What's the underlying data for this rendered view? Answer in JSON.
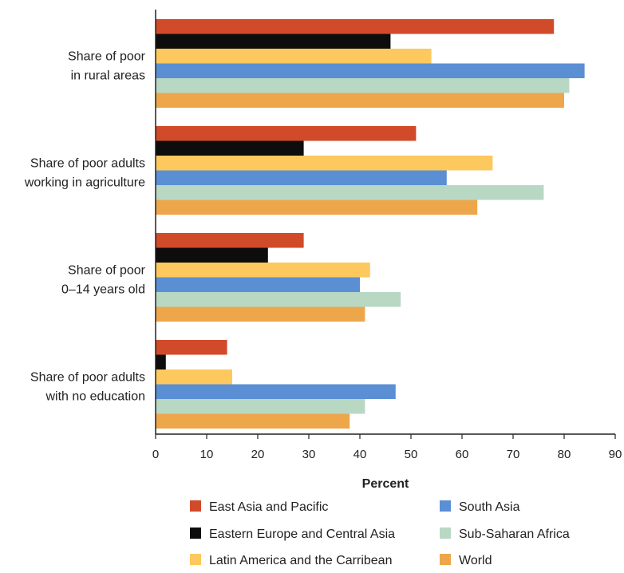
{
  "chart_data": {
    "type": "bar",
    "orientation": "horizontal",
    "categories": [
      [
        "Share of poor",
        "in rural areas"
      ],
      [
        "Share of poor adults",
        "working in agriculture"
      ],
      [
        "Share of poor",
        "0–14 years old"
      ],
      [
        "Share of poor adults",
        "with no education"
      ]
    ],
    "series": [
      {
        "name": "East Asia and Pacific",
        "color": "#d14a2a",
        "values": [
          78,
          51,
          29,
          14
        ]
      },
      {
        "name": "Eastern Europe and Central Asia",
        "color": "#0d0d0d",
        "values": [
          46,
          29,
          22,
          2
        ]
      },
      {
        "name": "Latin America and the Carribean",
        "color": "#fdc85e",
        "values": [
          54,
          66,
          42,
          15
        ]
      },
      {
        "name": "South Asia",
        "color": "#5b8fd4",
        "values": [
          84,
          57,
          40,
          47
        ]
      },
      {
        "name": "Sub-Saharan Africa",
        "color": "#b8d8c4",
        "values": [
          81,
          76,
          48,
          41
        ]
      },
      {
        "name": "World",
        "color": "#eda64a",
        "values": [
          80,
          63,
          41,
          38
        ]
      }
    ],
    "xlabel": "Percent",
    "xlim": [
      0,
      90
    ],
    "xticks": [
      "0",
      "10",
      "20",
      "30",
      "40",
      "50",
      "60",
      "70",
      "80",
      "90"
    ],
    "grid": false,
    "legend_position": "bottom"
  }
}
